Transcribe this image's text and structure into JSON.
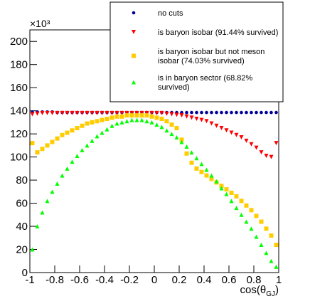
{
  "chart_data": {
    "type": "scatter",
    "y_multiplier": "×10³",
    "xlabel": {
      "text": "cos(θ",
      "subscript": "GJ",
      "close": ")"
    },
    "xlim": [
      -1,
      1
    ],
    "xticks": [
      -1,
      -0.8,
      -0.6,
      -0.4,
      -0.2,
      0,
      0.2,
      0.4,
      0.6,
      0.8,
      1
    ],
    "ylim": [
      0,
      210
    ],
    "yticks": [
      0,
      20,
      40,
      60,
      80,
      100,
      120,
      140,
      160,
      180,
      200
    ],
    "x": [
      -0.98,
      -0.94,
      -0.9,
      -0.86,
      -0.82,
      -0.78,
      -0.74,
      -0.7,
      -0.66,
      -0.62,
      -0.58,
      -0.54,
      -0.5,
      -0.46,
      -0.42,
      -0.38,
      -0.34,
      -0.3,
      -0.26,
      -0.22,
      -0.18,
      -0.14,
      -0.1,
      -0.06,
      -0.02,
      0.02,
      0.06,
      0.1,
      0.14,
      0.18,
      0.22,
      0.26,
      0.3,
      0.34,
      0.38,
      0.42,
      0.46,
      0.5,
      0.54,
      0.58,
      0.62,
      0.66,
      0.7,
      0.74,
      0.78,
      0.82,
      0.86,
      0.9,
      0.94,
      0.98
    ],
    "series": [
      {
        "name": "no cuts",
        "color": "#000099",
        "marker": "circle",
        "values": [
          139,
          139,
          139,
          139,
          139,
          138.5,
          138.5,
          138.5,
          138.5,
          138.5,
          138.5,
          138.5,
          138.5,
          138.5,
          138.5,
          138.5,
          138.5,
          138.5,
          138.5,
          138.5,
          138.5,
          138.5,
          138.5,
          138.5,
          138.5,
          138.5,
          138.5,
          138.5,
          138.5,
          138.5,
          138.5,
          138.5,
          138.5,
          138.5,
          138.5,
          138.5,
          138.5,
          138.5,
          138.5,
          138.5,
          138.5,
          138.5,
          138.5,
          138.5,
          138.5,
          138.5,
          138.5,
          138.5,
          138.5,
          138.5
        ]
      },
      {
        "name": "is baryon isobar (91.44% survived)",
        "color": "#ff0000",
        "marker": "triangle-down",
        "values": [
          137,
          137.5,
          138,
          138,
          138,
          138,
          138,
          138,
          138,
          138,
          138,
          138,
          138,
          138,
          138,
          138,
          138,
          138,
          138,
          138,
          138,
          138,
          138,
          138,
          138,
          138,
          138,
          137.5,
          137,
          136.5,
          136,
          135,
          134,
          133,
          132,
          131,
          129,
          127,
          125,
          123,
          121,
          119,
          117,
          114,
          111,
          108,
          104,
          101,
          100,
          112
        ]
      },
      {
        "name": "is baryon isobar but not meson isobar (74.03% survived)",
        "color": "#ffcc00",
        "marker": "square",
        "values": [
          112,
          104,
          107,
          110,
          113,
          116,
          119,
          121,
          123,
          125,
          127,
          129,
          130,
          131,
          132,
          133,
          134,
          135,
          135,
          136,
          136,
          136,
          136,
          136,
          135,
          134,
          133,
          131,
          128,
          125,
          115,
          103,
          95,
          90,
          87,
          84,
          81,
          78,
          75,
          72,
          69,
          66,
          62,
          58,
          54,
          49,
          44,
          38,
          32,
          24
        ]
      },
      {
        "name": "is in baryon sector (68.82% survived)",
        "color": "#00ff00",
        "marker": "triangle-up",
        "values": [
          20,
          40,
          52,
          62,
          70,
          77,
          84,
          90,
          96,
          101,
          106,
          110,
          114,
          118,
          121,
          124,
          127,
          129,
          130,
          131,
          132,
          132,
          132,
          131,
          130,
          128,
          126,
          123,
          120,
          117,
          113,
          109,
          104,
          99,
          94,
          89,
          84,
          79,
          73,
          68,
          62,
          56,
          50,
          44,
          38,
          31,
          24,
          17,
          10,
          5
        ]
      }
    ]
  }
}
